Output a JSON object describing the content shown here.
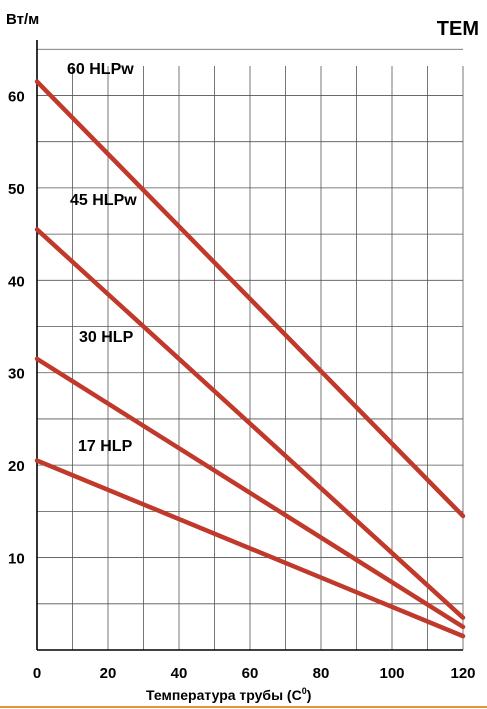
{
  "brand": "TEM",
  "chart_data": {
    "type": "line",
    "ylabel": "Вт/м",
    "xlabel": "Температура трубы (С",
    "xlabel_sup": "0",
    "xlabel_close": ")",
    "xlim": [
      0,
      120
    ],
    "ylim": [
      0,
      66
    ],
    "x_ticks": [
      0,
      20,
      40,
      60,
      80,
      100,
      120
    ],
    "y_ticks": [
      10,
      20,
      30,
      40,
      50,
      60
    ],
    "grid": true,
    "line_color": "#c0392b",
    "series": [
      {
        "name": "60 HLPw",
        "x": [
          0,
          120
        ],
        "y": [
          61.5,
          14.5
        ]
      },
      {
        "name": "45 HLPw",
        "x": [
          0,
          120
        ],
        "y": [
          45.5,
          3.5
        ]
      },
      {
        "name": "30 HLP",
        "x": [
          0,
          120
        ],
        "y": [
          31.5,
          2.5
        ]
      },
      {
        "name": "17 HLP",
        "x": [
          0,
          120
        ],
        "y": [
          20.5,
          1.5
        ]
      }
    ]
  }
}
